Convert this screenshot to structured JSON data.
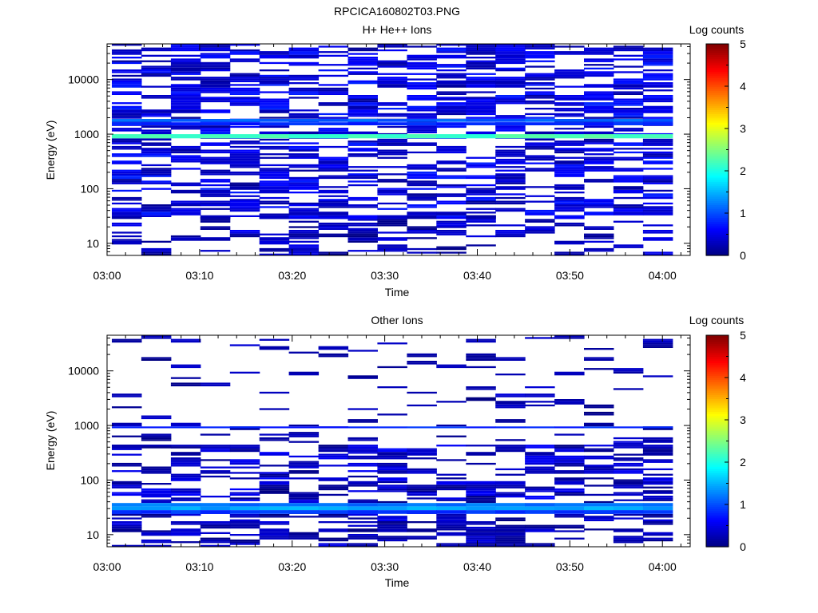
{
  "figure_title": "RPCICA160802T03.PNG",
  "chart_data": [
    {
      "type": "heatmap",
      "title": "H+ He++ Ions",
      "xlabel": "Time",
      "ylabel": "Energy (eV)",
      "x_tick_labels": [
        "03:00",
        "03:10",
        "03:20",
        "03:30",
        "03:40",
        "03:50",
        "04:00"
      ],
      "x_range": [
        "03:00",
        "04:03"
      ],
      "y_scale": "log",
      "y_tick_labels": [
        "10",
        "100",
        "1000",
        "10000"
      ],
      "y_range": [
        6,
        45000
      ],
      "colorbar": {
        "label": "Log counts",
        "range": [
          0,
          5
        ],
        "ticks": [
          "0",
          "1",
          "2",
          "3",
          "4",
          "5"
        ],
        "colormap": "jet"
      },
      "time_bins": 19,
      "bands": [
        {
          "energy_low": 840,
          "energy_high": 1000,
          "log_counts": 2.2
        },
        {
          "energy_low": 1680,
          "energy_high": 1900,
          "log_counts": 1.1
        },
        {
          "energy_low": 1450,
          "energy_high": 1650,
          "log_counts": 0.8
        }
      ],
      "background": {
        "energy_min": 30,
        "energy_max": 45000,
        "log_counts_min": 0.15,
        "log_counts_max": 0.75,
        "fill_probability": 0.72
      },
      "sparse_low": {
        "energy_min": 6,
        "energy_max": 30,
        "log_counts_min": 0.05,
        "log_counts_max": 0.55,
        "fill_probability": 0.5
      }
    },
    {
      "type": "heatmap",
      "title": "Other Ions",
      "xlabel": "Time",
      "ylabel": "Energy (eV)",
      "x_tick_labels": [
        "03:00",
        "03:10",
        "03:20",
        "03:30",
        "03:40",
        "03:50",
        "04:00"
      ],
      "x_range": [
        "03:00",
        "04:03"
      ],
      "y_scale": "log",
      "y_tick_labels": [
        "10",
        "100",
        "1000",
        "10000"
      ],
      "y_range": [
        6,
        45000
      ],
      "colorbar": {
        "label": "Log counts",
        "range": [
          0,
          5
        ],
        "ticks": [
          "0",
          "1",
          "2",
          "3",
          "4",
          "5"
        ],
        "colormap": "jet"
      },
      "time_bins": 19,
      "bands": [
        {
          "energy_low": 28,
          "energy_high": 33,
          "log_counts": 1.45
        },
        {
          "energy_low": 33,
          "energy_high": 38,
          "log_counts": 1.2
        },
        {
          "energy_low": 24,
          "energy_high": 28,
          "log_counts": 0.9
        },
        {
          "energy_low": 890,
          "energy_high": 960,
          "log_counts": 0.8
        }
      ],
      "background": {
        "energy_min": 40,
        "energy_max": 400,
        "log_counts_min": 0.05,
        "log_counts_max": 0.6,
        "fill_probability": 0.62
      },
      "sparse_high": {
        "energy_min": 400,
        "energy_max": 45000,
        "log_counts_min": 0.05,
        "log_counts_max": 0.4,
        "fill_probability": 0.18
      },
      "sparse_low": {
        "energy_min": 6,
        "energy_max": 24,
        "log_counts_min": 0.05,
        "log_counts_max": 0.5,
        "fill_probability": 0.7
      }
    }
  ]
}
